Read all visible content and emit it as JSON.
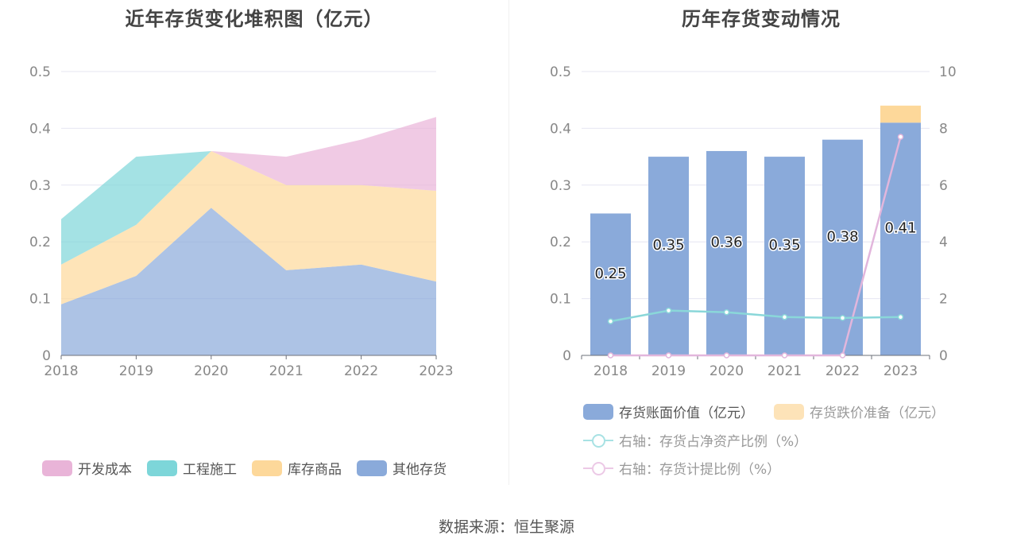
{
  "left": {
    "title": "近年存货变化堆积图（亿元）",
    "legend": [
      "开发成本",
      "工程施工",
      "库存商品",
      "其他存货"
    ],
    "colors": [
      "#e9b4d8",
      "#7dd6d9",
      "#fdd89a",
      "#8aaada"
    ]
  },
  "right": {
    "title": "历年存货变动情况",
    "legend": [
      "存货账面价值（亿元）",
      "存货跌价准备（亿元）",
      "右轴：存货占净资产比例（%）",
      "右轴：存货计提比例（%）"
    ],
    "colors": [
      "#8aaada",
      "#fde3b8",
      "#8ad7d9",
      "#e2b6dc"
    ]
  },
  "source": "数据来源：恒生聚源",
  "chart_data": [
    {
      "type": "area",
      "stacked": true,
      "title": "近年存货变化堆积图（亿元）",
      "categories": [
        "2018",
        "2019",
        "2020",
        "2021",
        "2022",
        "2023"
      ],
      "ylim": [
        0,
        0.5
      ],
      "y_ticks": [
        "0",
        "0.1",
        "0.2",
        "0.3",
        "0.4",
        "0.5"
      ],
      "grid": true,
      "legend_position": "bottom",
      "series": [
        {
          "name": "其他存货",
          "values": [
            0.09,
            0.14,
            0.26,
            0.15,
            0.16,
            0.13
          ]
        },
        {
          "name": "库存商品",
          "values": [
            0.07,
            0.09,
            0.1,
            0.15,
            0.14,
            0.16
          ]
        },
        {
          "name": "工程施工",
          "values": [
            0.08,
            0.12,
            0.0,
            0.0,
            0.0,
            0.0
          ]
        },
        {
          "name": "开发成本",
          "values": [
            0.0,
            0.0,
            0.0,
            0.05,
            0.08,
            0.13
          ]
        }
      ]
    },
    {
      "type": "bar",
      "stacked": true,
      "title": "历年存货变动情况",
      "categories": [
        "2018",
        "2019",
        "2020",
        "2021",
        "2022",
        "2023"
      ],
      "ylim": [
        0,
        0.5
      ],
      "y_ticks": [
        "0",
        "0.1",
        "0.2",
        "0.3",
        "0.4",
        "0.5"
      ],
      "y2lim": [
        0,
        10
      ],
      "y2_ticks": [
        "0",
        "2",
        "4",
        "6",
        "8",
        "10"
      ],
      "grid": true,
      "legend_position": "bottom",
      "series": [
        {
          "name": "存货账面价值（亿元）",
          "type": "bar",
          "values": [
            0.25,
            0.35,
            0.36,
            0.35,
            0.38,
            0.41
          ],
          "labels": [
            "0.25",
            "0.35",
            "0.36",
            "0.35",
            "0.38",
            "0.41"
          ]
        },
        {
          "name": "存货跌价准备（亿元）",
          "type": "bar",
          "values": [
            0,
            0,
            0,
            0,
            0,
            0.03
          ]
        },
        {
          "name": "右轴：存货占净资产比例（%）",
          "type": "line",
          "axis": "right",
          "values": [
            1.2,
            1.58,
            1.52,
            1.35,
            1.32,
            1.35
          ]
        },
        {
          "name": "右轴：存货计提比例（%）",
          "type": "line",
          "axis": "right",
          "values": [
            0,
            0,
            0,
            0,
            0,
            7.7
          ]
        }
      ]
    }
  ]
}
